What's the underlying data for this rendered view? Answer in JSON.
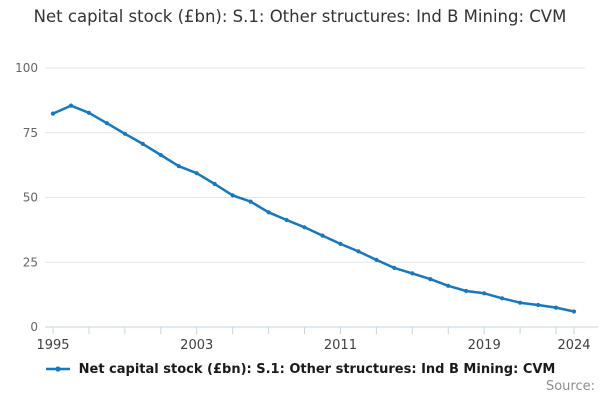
{
  "title": "Net capital stock (£bn): S.1: Other structures: Ind B Mining: CVM",
  "legend": {
    "label": "Net capital stock (£bn): S.1: Other structures: Ind B Mining: CVM"
  },
  "source_label": "Source:",
  "colors": {
    "line": "#1778be",
    "grid": "#e6e6e6",
    "axis": "#c7d3e3",
    "x_tick_label": "#404040",
    "y_tick_label": "#666666",
    "title_text": "#333333",
    "source_text": "#8e8e8e"
  },
  "chart_data": {
    "type": "line",
    "title": "Net capital stock (£bn): S.1: Other structures: Ind B Mining: CVM",
    "xlabel": "",
    "ylabel": "",
    "x": [
      1995,
      1996,
      1997,
      1998,
      1999,
      2000,
      2001,
      2002,
      2003,
      2004,
      2005,
      2006,
      2007,
      2008,
      2009,
      2010,
      2011,
      2012,
      2013,
      2014,
      2015,
      2016,
      2017,
      2018,
      2019,
      2020,
      2021,
      2022,
      2023,
      2024
    ],
    "series": [
      {
        "name": "Net capital stock (£bn): S.1: Other structures: Ind B Mining: CVM",
        "values": [
          82.4,
          85.5,
          82.7,
          78.7,
          74.6,
          70.7,
          66.4,
          62.1,
          59.4,
          55.2,
          50.8,
          48.4,
          44.3,
          41.3,
          38.5,
          35.3,
          32.1,
          29.2,
          25.9,
          22.8,
          20.7,
          18.5,
          15.9,
          13.9,
          13.0,
          11.1,
          9.4,
          8.5,
          7.5,
          6.0
        ]
      }
    ],
    "ylim": [
      0,
      100
    ],
    "yticks": [
      0,
      25,
      50,
      75,
      100
    ],
    "xticks": [
      1995,
      1997,
      1999,
      2001,
      2003,
      2005,
      2007,
      2009,
      2011,
      2013,
      2015,
      2017,
      2019,
      2021,
      2023,
      2024
    ],
    "xtick_labels": [
      1995,
      2003,
      2011,
      2019,
      2024
    ],
    "grid": true,
    "legend_position": "bottom",
    "marker": "circle"
  }
}
